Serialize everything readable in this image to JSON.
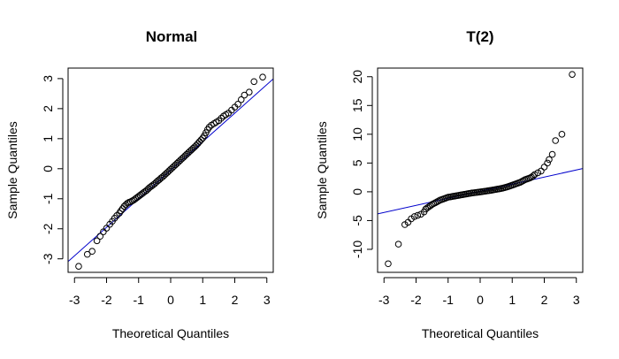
{
  "chart_data": [
    {
      "type": "scatter",
      "title": "Normal",
      "xlabel": "Theoretical Quantiles",
      "ylabel": "Sample Quantiles",
      "xlim": [
        -3.2,
        3.2
      ],
      "ylim": [
        -3.45,
        3.35
      ],
      "xticks": [
        -3,
        -2,
        -1,
        0,
        1,
        2,
        3
      ],
      "yticks": [
        -3,
        -2,
        -1,
        0,
        1,
        2,
        3
      ],
      "xtick_labels": [
        "-3",
        "-2",
        "-1",
        "0",
        "1",
        "2",
        "3"
      ],
      "ytick_labels": [
        "-3",
        "-2",
        "-1",
        "0",
        "1",
        "2",
        "3"
      ],
      "reference_line": {
        "intercept": -0.05,
        "slope": 0.95,
        "color": "#0000cc"
      },
      "points": [
        [
          -2.87,
          -3.25
        ],
        [
          -2.6,
          -2.85
        ],
        [
          -2.45,
          -2.75
        ],
        [
          -2.3,
          -2.4
        ],
        [
          -2.2,
          -2.25
        ],
        [
          -2.1,
          -2.1
        ],
        [
          -2.0,
          -1.98
        ],
        [
          -1.9,
          -1.85
        ],
        [
          -1.82,
          -1.75
        ],
        [
          -1.75,
          -1.65
        ],
        [
          -1.68,
          -1.56
        ],
        [
          -1.6,
          -1.48
        ],
        [
          -1.55,
          -1.4
        ],
        [
          -1.5,
          -1.33
        ],
        [
          -1.45,
          -1.25
        ],
        [
          -1.4,
          -1.2
        ],
        [
          -1.35,
          -1.15
        ],
        [
          -1.3,
          -1.12
        ],
        [
          -1.25,
          -1.1
        ],
        [
          -1.2,
          -1.07
        ],
        [
          -1.15,
          -1.04
        ],
        [
          -1.1,
          -1.0
        ],
        [
          -1.05,
          -0.96
        ],
        [
          -1.0,
          -0.92
        ],
        [
          -0.95,
          -0.88
        ],
        [
          -0.9,
          -0.84
        ],
        [
          -0.85,
          -0.8
        ],
        [
          -0.8,
          -0.76
        ],
        [
          -0.75,
          -0.72
        ],
        [
          -0.7,
          -0.67
        ],
        [
          -0.65,
          -0.62
        ],
        [
          -0.6,
          -0.58
        ],
        [
          -0.55,
          -0.54
        ],
        [
          -0.5,
          -0.5
        ],
        [
          -0.45,
          -0.45
        ],
        [
          -0.4,
          -0.4
        ],
        [
          -0.35,
          -0.36
        ],
        [
          -0.3,
          -0.31
        ],
        [
          -0.25,
          -0.27
        ],
        [
          -0.2,
          -0.22
        ],
        [
          -0.15,
          -0.17
        ],
        [
          -0.1,
          -0.12
        ],
        [
          -0.05,
          -0.07
        ],
        [
          0.0,
          -0.02
        ],
        [
          0.05,
          0.03
        ],
        [
          0.1,
          0.08
        ],
        [
          0.15,
          0.13
        ],
        [
          0.2,
          0.18
        ],
        [
          0.25,
          0.23
        ],
        [
          0.3,
          0.28
        ],
        [
          0.35,
          0.33
        ],
        [
          0.4,
          0.38
        ],
        [
          0.45,
          0.43
        ],
        [
          0.5,
          0.48
        ],
        [
          0.55,
          0.53
        ],
        [
          0.6,
          0.58
        ],
        [
          0.65,
          0.63
        ],
        [
          0.7,
          0.68
        ],
        [
          0.75,
          0.73
        ],
        [
          0.8,
          0.78
        ],
        [
          0.85,
          0.84
        ],
        [
          0.9,
          0.9
        ],
        [
          0.95,
          0.96
        ],
        [
          1.0,
          1.02
        ],
        [
          1.05,
          1.1
        ],
        [
          1.1,
          1.2
        ],
        [
          1.15,
          1.3
        ],
        [
          1.2,
          1.38
        ],
        [
          1.27,
          1.45
        ],
        [
          1.35,
          1.5
        ],
        [
          1.42,
          1.55
        ],
        [
          1.5,
          1.6
        ],
        [
          1.58,
          1.68
        ],
        [
          1.65,
          1.75
        ],
        [
          1.72,
          1.8
        ],
        [
          1.8,
          1.85
        ],
        [
          1.9,
          1.95
        ],
        [
          2.0,
          2.05
        ],
        [
          2.1,
          2.15
        ],
        [
          2.2,
          2.3
        ],
        [
          2.3,
          2.45
        ],
        [
          2.45,
          2.55
        ],
        [
          2.6,
          2.9
        ],
        [
          2.87,
          3.05
        ]
      ]
    },
    {
      "type": "scatter",
      "title": "T(2)",
      "xlabel": "Theoretical Quantiles",
      "ylabel": "Sample Quantiles",
      "xlim": [
        -3.2,
        3.2
      ],
      "ylim": [
        -14.0,
        21.5
      ],
      "xticks": [
        -3,
        -2,
        -1,
        0,
        1,
        2,
        3
      ],
      "yticks": [
        -10,
        -5,
        0,
        5,
        10,
        15,
        20
      ],
      "xtick_labels": [
        "-3",
        "-2",
        "-1",
        "0",
        "1",
        "2",
        "3"
      ],
      "ytick_labels": [
        "-10",
        "-5",
        "0",
        "5",
        "10",
        "15",
        "20"
      ],
      "reference_line": {
        "intercept": 0.1,
        "slope": 1.23,
        "color": "#0000cc"
      },
      "points": [
        [
          -2.87,
          -12.5
        ],
        [
          -2.55,
          -9.1
        ],
        [
          -2.35,
          -5.7
        ],
        [
          -2.25,
          -5.3
        ],
        [
          -2.15,
          -4.7
        ],
        [
          -2.05,
          -4.3
        ],
        [
          -1.95,
          -4.1
        ],
        [
          -1.85,
          -3.9
        ],
        [
          -1.75,
          -3.5
        ],
        [
          -1.7,
          -3.0
        ],
        [
          -1.65,
          -2.8
        ],
        [
          -1.6,
          -2.6
        ],
        [
          -1.55,
          -2.4
        ],
        [
          -1.5,
          -2.2
        ],
        [
          -1.45,
          -2.05
        ],
        [
          -1.4,
          -1.9
        ],
        [
          -1.35,
          -1.75
        ],
        [
          -1.3,
          -1.6
        ],
        [
          -1.25,
          -1.45
        ],
        [
          -1.2,
          -1.35
        ],
        [
          -1.15,
          -1.25
        ],
        [
          -1.1,
          -1.15
        ],
        [
          -1.05,
          -1.05
        ],
        [
          -1.0,
          -0.95
        ],
        [
          -0.95,
          -0.9
        ],
        [
          -0.9,
          -0.85
        ],
        [
          -0.85,
          -0.8
        ],
        [
          -0.8,
          -0.75
        ],
        [
          -0.75,
          -0.7
        ],
        [
          -0.7,
          -0.65
        ],
        [
          -0.65,
          -0.6
        ],
        [
          -0.6,
          -0.55
        ],
        [
          -0.55,
          -0.5
        ],
        [
          -0.5,
          -0.45
        ],
        [
          -0.45,
          -0.4
        ],
        [
          -0.4,
          -0.35
        ],
        [
          -0.35,
          -0.3
        ],
        [
          -0.3,
          -0.25
        ],
        [
          -0.25,
          -0.2
        ],
        [
          -0.2,
          -0.17
        ],
        [
          -0.15,
          -0.13
        ],
        [
          -0.1,
          -0.1
        ],
        [
          -0.05,
          -0.06
        ],
        [
          0.0,
          -0.02
        ],
        [
          0.05,
          0.02
        ],
        [
          0.1,
          0.06
        ],
        [
          0.15,
          0.1
        ],
        [
          0.2,
          0.14
        ],
        [
          0.25,
          0.18
        ],
        [
          0.3,
          0.22
        ],
        [
          0.35,
          0.27
        ],
        [
          0.4,
          0.32
        ],
        [
          0.45,
          0.37
        ],
        [
          0.5,
          0.42
        ],
        [
          0.55,
          0.47
        ],
        [
          0.6,
          0.52
        ],
        [
          0.65,
          0.57
        ],
        [
          0.7,
          0.63
        ],
        [
          0.75,
          0.7
        ],
        [
          0.8,
          0.78
        ],
        [
          0.85,
          0.86
        ],
        [
          0.9,
          0.95
        ],
        [
          0.95,
          1.05
        ],
        [
          1.0,
          1.15
        ],
        [
          1.05,
          1.25
        ],
        [
          1.1,
          1.35
        ],
        [
          1.15,
          1.45
        ],
        [
          1.2,
          1.55
        ],
        [
          1.25,
          1.65
        ],
        [
          1.3,
          1.8
        ],
        [
          1.35,
          1.95
        ],
        [
          1.4,
          2.1
        ],
        [
          1.45,
          2.2
        ],
        [
          1.5,
          2.3
        ],
        [
          1.55,
          2.4
        ],
        [
          1.6,
          2.55
        ],
        [
          1.65,
          2.75
        ],
        [
          1.7,
          3.0
        ],
        [
          1.8,
          3.3
        ],
        [
          1.9,
          3.6
        ],
        [
          2.0,
          4.3
        ],
        [
          2.1,
          5.0
        ],
        [
          2.15,
          5.6
        ],
        [
          2.25,
          6.5
        ],
        [
          2.35,
          8.9
        ],
        [
          2.55,
          10.0
        ],
        [
          2.87,
          20.4
        ]
      ]
    }
  ]
}
